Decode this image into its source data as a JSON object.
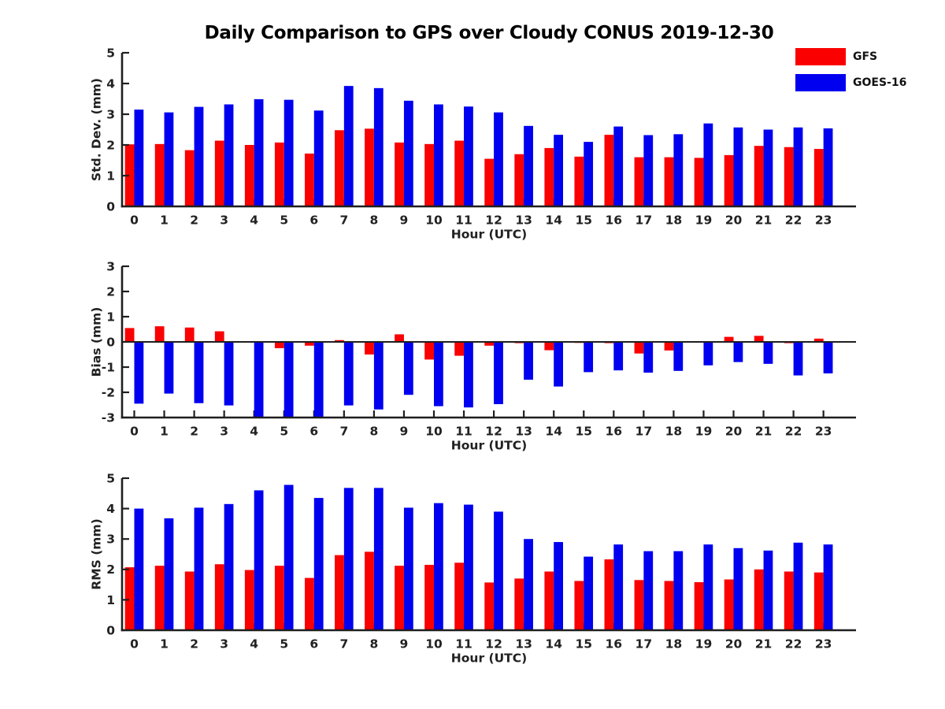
{
  "title": "Daily Comparison to GPS over Cloudy CONUS 2019-12-30",
  "legend": {
    "position": "top-right",
    "items": [
      {
        "label": "GFS",
        "color": "#fa0000"
      },
      {
        "label": "GOES-16",
        "color": "#0000f0"
      }
    ]
  },
  "colors": {
    "gfs": "#fa0000",
    "goes16": "#0000f0",
    "axis": "#1f1f1f",
    "title": "#000000"
  },
  "chart_data": [
    {
      "id": "stddev",
      "type": "bar",
      "title": "",
      "ylabel": "Std. Dev. (mm)",
      "xlabel": "Hour (UTC)",
      "ylim": [
        0,
        5
      ],
      "yticks": [
        0,
        1,
        2,
        3,
        4,
        5
      ],
      "grid": false,
      "categories": [
        0,
        1,
        2,
        3,
        4,
        5,
        6,
        7,
        8,
        9,
        10,
        11,
        12,
        13,
        14,
        15,
        16,
        17,
        18,
        19,
        20,
        21,
        22,
        23
      ],
      "series": [
        {
          "name": "GFS",
          "color": "#fa0000",
          "values": [
            2.02,
            2.03,
            1.83,
            2.14,
            2.0,
            2.08,
            1.72,
            2.48,
            2.53,
            2.08,
            2.03,
            2.14,
            1.55,
            1.7,
            1.9,
            1.62,
            2.33,
            1.6,
            1.6,
            1.58,
            1.67,
            1.97,
            1.93,
            1.87
          ]
        },
        {
          "name": "GOES-16",
          "color": "#0000f0",
          "values": [
            3.15,
            3.06,
            3.24,
            3.32,
            3.49,
            3.47,
            3.12,
            3.92,
            3.85,
            3.44,
            3.32,
            3.25,
            3.06,
            2.62,
            2.33,
            2.1,
            2.6,
            2.32,
            2.35,
            2.7,
            2.57,
            2.5,
            2.57,
            2.54
          ]
        }
      ]
    },
    {
      "id": "bias",
      "type": "bar",
      "title": "",
      "ylabel": "Bias (mm)",
      "xlabel": "Hour (UTC)",
      "ylim": [
        -3,
        3
      ],
      "yticks": [
        -3,
        -2,
        -1,
        0,
        1,
        2,
        3
      ],
      "grid": false,
      "categories": [
        0,
        1,
        2,
        3,
        4,
        5,
        6,
        7,
        8,
        9,
        10,
        11,
        12,
        13,
        14,
        15,
        16,
        17,
        18,
        19,
        20,
        21,
        22,
        23
      ],
      "series": [
        {
          "name": "GFS",
          "color": "#fa0000",
          "values": [
            0.55,
            0.62,
            0.57,
            0.42,
            0.0,
            -0.25,
            -0.15,
            0.07,
            -0.5,
            0.3,
            -0.7,
            -0.55,
            -0.15,
            -0.05,
            -0.33,
            -0.04,
            -0.05,
            -0.46,
            -0.34,
            0.0,
            0.2,
            0.24,
            -0.05,
            0.13
          ]
        },
        {
          "name": "GOES-16",
          "color": "#0000f0",
          "values": [
            -2.45,
            -2.05,
            -2.43,
            -2.52,
            -3.0,
            -3.0,
            -3.0,
            -2.52,
            -2.68,
            -2.1,
            -2.55,
            -2.6,
            -2.47,
            -1.5,
            -1.77,
            -1.2,
            -1.13,
            -1.22,
            -1.15,
            -0.93,
            -0.8,
            -0.87,
            -1.33,
            -1.25
          ]
        }
      ]
    },
    {
      "id": "rms",
      "type": "bar",
      "title": "",
      "ylabel": "RMS (mm)",
      "xlabel": "Hour (UTC)",
      "ylim": [
        0,
        5
      ],
      "yticks": [
        0,
        1,
        2,
        3,
        4,
        5
      ],
      "grid": false,
      "categories": [
        0,
        1,
        2,
        3,
        4,
        5,
        6,
        7,
        8,
        9,
        10,
        11,
        12,
        13,
        14,
        15,
        16,
        17,
        18,
        19,
        20,
        21,
        22,
        23
      ],
      "series": [
        {
          "name": "GFS",
          "color": "#fa0000",
          "values": [
            2.07,
            2.12,
            1.93,
            2.17,
            1.98,
            2.12,
            1.72,
            2.47,
            2.58,
            2.12,
            2.15,
            2.22,
            1.57,
            1.7,
            1.93,
            1.62,
            2.33,
            1.65,
            1.62,
            1.58,
            1.67,
            2.0,
            1.93,
            1.9
          ]
        },
        {
          "name": "GOES-16",
          "color": "#0000f0",
          "values": [
            4.0,
            3.68,
            4.03,
            4.15,
            4.6,
            4.78,
            4.35,
            4.68,
            4.68,
            4.03,
            4.18,
            4.13,
            3.9,
            3.0,
            2.9,
            2.42,
            2.82,
            2.6,
            2.6,
            2.82,
            2.7,
            2.62,
            2.88,
            2.82
          ]
        }
      ]
    }
  ]
}
